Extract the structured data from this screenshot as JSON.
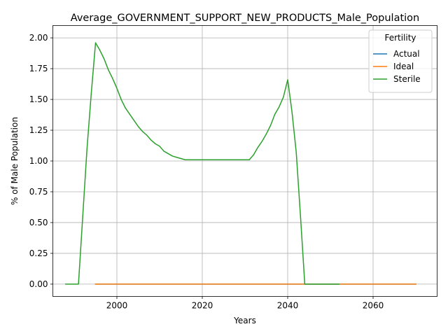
{
  "chart_data": {
    "type": "line",
    "title": "Average_GOVERNMENT_SUPPORT_NEW_PRODUCTS_Male_Population",
    "xlabel": "Years",
    "ylabel": "% of Male Population",
    "xlim": [
      1985,
      2075
    ],
    "ylim": [
      -0.1,
      2.1
    ],
    "xticks": [
      2000,
      2020,
      2040,
      2060
    ],
    "yticks": [
      0.0,
      0.25,
      0.5,
      0.75,
      1.0,
      1.25,
      1.5,
      1.75,
      2.0
    ],
    "ytick_labels": [
      "0.00",
      "0.25",
      "0.50",
      "0.75",
      "1.00",
      "1.25",
      "1.50",
      "1.75",
      "2.00"
    ],
    "grid": true,
    "legend": {
      "title": "Fertility",
      "placement": "top-right"
    },
    "series": [
      {
        "name": "Actual",
        "color": "#1f77b4",
        "x": [
          1995,
          2070
        ],
        "y": [
          0,
          0
        ]
      },
      {
        "name": "Ideal",
        "color": "#ff7f0e",
        "x": [
          1995,
          2000,
          2010,
          2020,
          2030,
          2040,
          2050,
          2060,
          2070
        ],
        "y": [
          0,
          0,
          0,
          0,
          0,
          0,
          0,
          0,
          0
        ]
      },
      {
        "name": "Sterile",
        "color": "#2ca02c",
        "x": [
          1988,
          1989,
          1990,
          1991,
          1992,
          1993,
          1994,
          1995,
          1996,
          1997,
          1998,
          1999,
          2000,
          2001,
          2002,
          2003,
          2004,
          2005,
          2006,
          2007,
          2008,
          2009,
          2010,
          2011,
          2012,
          2013,
          2014,
          2015,
          2016,
          2017,
          2018,
          2019,
          2020,
          2021,
          2022,
          2023,
          2024,
          2025,
          2026,
          2027,
          2028,
          2029,
          2030,
          2031,
          2032,
          2033,
          2034,
          2035,
          2036,
          2037,
          2038,
          2039,
          2040,
          2041,
          2042,
          2043,
          2044,
          2045,
          2046,
          2047,
          2048,
          2049,
          2050,
          2051,
          2052
        ],
        "y": [
          0,
          0,
          0,
          0,
          0.55,
          1.1,
          1.55,
          1.96,
          1.9,
          1.83,
          1.74,
          1.67,
          1.59,
          1.5,
          1.43,
          1.38,
          1.33,
          1.28,
          1.24,
          1.21,
          1.17,
          1.14,
          1.12,
          1.08,
          1.06,
          1.04,
          1.03,
          1.02,
          1.01,
          1.01,
          1.01,
          1.01,
          1.01,
          1.01,
          1.01,
          1.01,
          1.01,
          1.01,
          1.01,
          1.01,
          1.01,
          1.01,
          1.01,
          1.01,
          1.05,
          1.11,
          1.16,
          1.22,
          1.29,
          1.38,
          1.44,
          1.52,
          1.66,
          1.4,
          1.07,
          0.55,
          0,
          0,
          0,
          0,
          0,
          0,
          0,
          0,
          0
        ]
      }
    ]
  }
}
